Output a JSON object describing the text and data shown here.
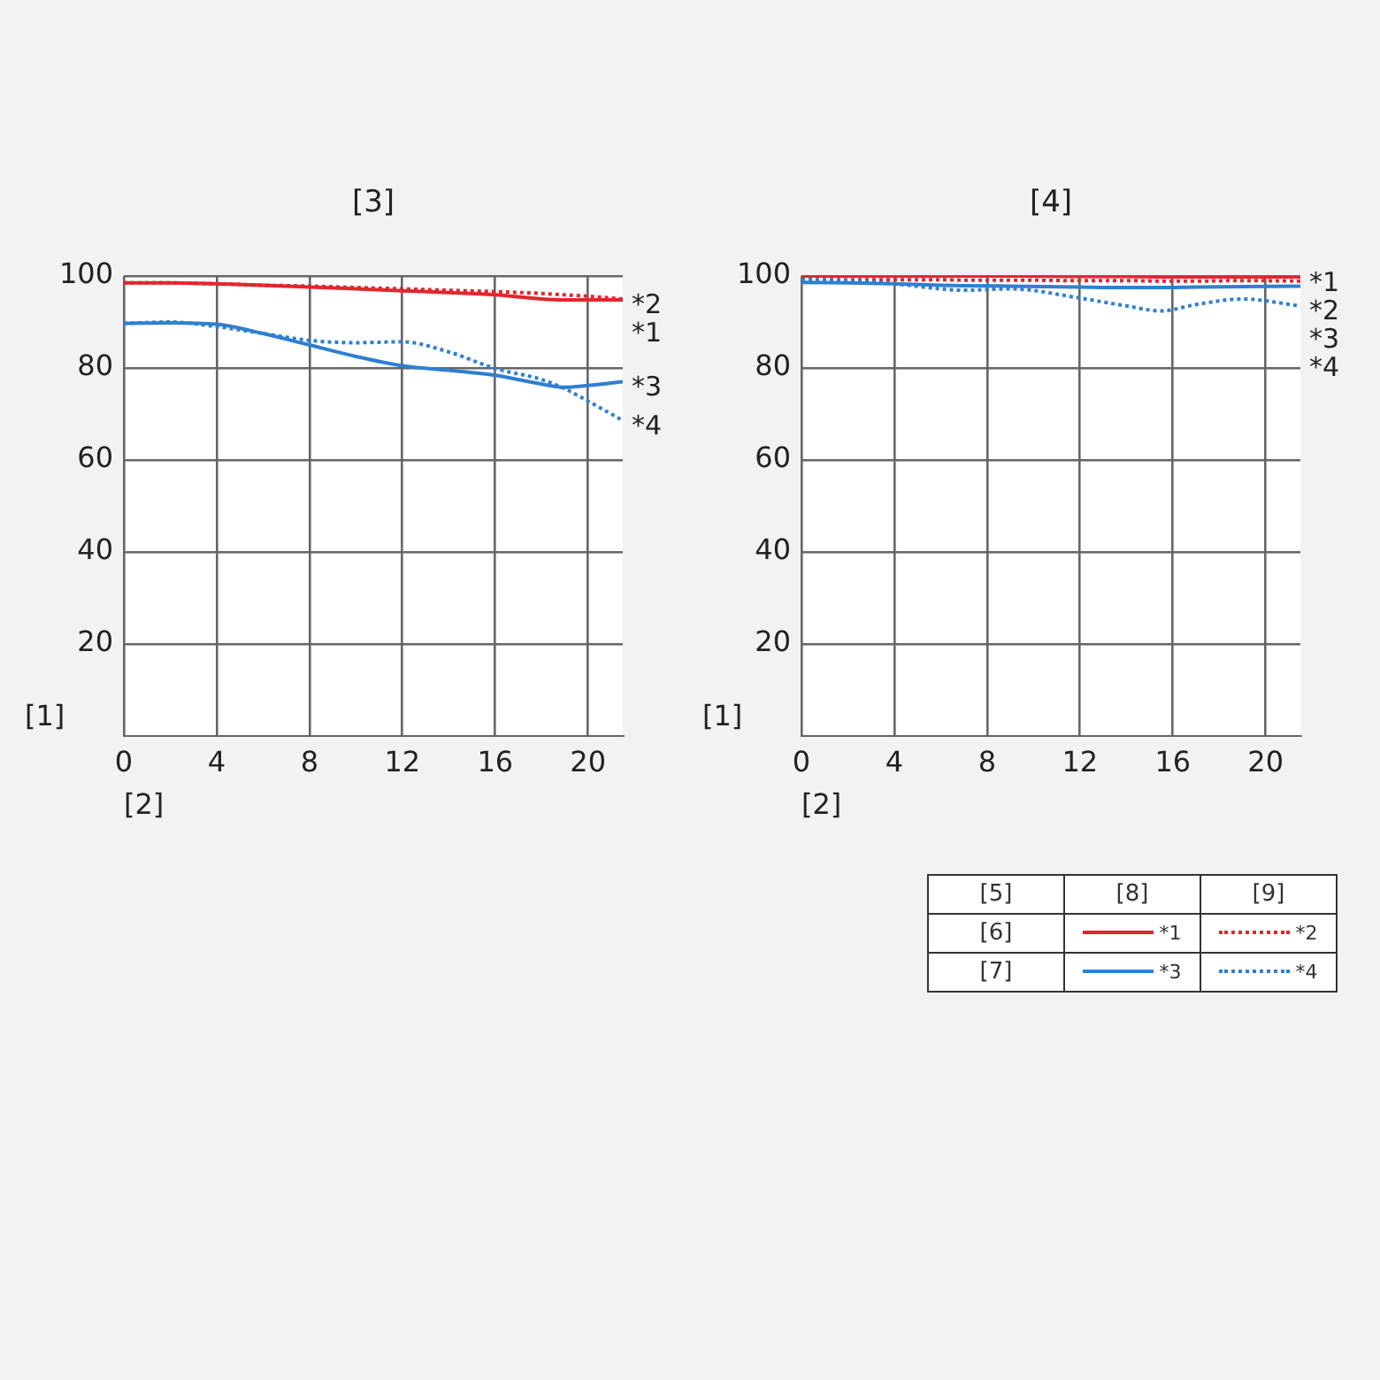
{
  "chart_data": [
    {
      "type": "line",
      "title": "[3]",
      "xlabel": "[2]",
      "ylabel": "[1]",
      "x": [
        0,
        2,
        4,
        6,
        8,
        10,
        12,
        14,
        16,
        18,
        19,
        20,
        21.5
      ],
      "xlim": [
        0,
        21.5
      ],
      "xticks": [
        0,
        4,
        8,
        12,
        16,
        20
      ],
      "ylim": [
        0,
        100
      ],
      "yticks": [
        20,
        40,
        60,
        80,
        100
      ],
      "grid": true,
      "legend": false,
      "series": [
        {
          "name": "*1",
          "color": "#e3262d",
          "line_style": "solid",
          "values": [
            98.5,
            98.5,
            98.3,
            98,
            97.6,
            97.2,
            96.8,
            96.4,
            95.9,
            95,
            94.8,
            94.8,
            94.8
          ]
        },
        {
          "name": "*2",
          "color": "#e3262d",
          "line_style": "dotted",
          "values": [
            98.5,
            98.5,
            98.3,
            98,
            97.8,
            97.5,
            97.2,
            96.9,
            96.6,
            96.2,
            95.9,
            95.6,
            95
          ]
        },
        {
          "name": "*3",
          "color": "#2f7fd1",
          "line_style": "solid",
          "values": [
            89.7,
            89.8,
            89.5,
            87.5,
            85,
            82.5,
            80.5,
            79.5,
            78.4,
            76.5,
            75.8,
            76.2,
            77
          ]
        },
        {
          "name": "*4",
          "color": "#2f7fd1",
          "line_style": "dotted",
          "values": [
            89.7,
            90,
            89,
            87.5,
            86,
            85.5,
            85.7,
            83.5,
            79.9,
            77.5,
            75.5,
            72.8,
            68.6
          ]
        }
      ]
    },
    {
      "type": "line",
      "title": "[4]",
      "xlabel": "[2]",
      "ylabel": "[1]",
      "x": [
        0,
        2,
        4,
        6,
        7,
        9,
        12,
        14,
        15.5,
        17,
        19,
        21.5
      ],
      "xlim": [
        0,
        21.5
      ],
      "xticks": [
        0,
        4,
        8,
        12,
        16,
        20
      ],
      "ylim": [
        0,
        100
      ],
      "yticks": [
        20,
        40,
        60,
        80,
        100
      ],
      "grid": true,
      "legend": "bottom right",
      "annotations": [
        "[5]",
        "[6]",
        "[7]",
        "[8]",
        "[9]"
      ],
      "series": [
        {
          "name": "*1",
          "color": "#e3262d",
          "line_style": "solid",
          "values": [
            100,
            100,
            100,
            100,
            100,
            100,
            99.9,
            99.9,
            99.8,
            99.8,
            99.8,
            99.8
          ]
        },
        {
          "name": "*2",
          "color": "#e3262d",
          "line_style": "dotted",
          "values": [
            99.2,
            99.2,
            99.2,
            99.2,
            99.1,
            99.1,
            99,
            99,
            98.9,
            98.9,
            99,
            98.9
          ]
        },
        {
          "name": "*3",
          "color": "#2f7fd1",
          "line_style": "solid",
          "values": [
            98.6,
            98.5,
            98.3,
            98,
            97.9,
            97.8,
            97.6,
            97.5,
            97.5,
            97.6,
            97.7,
            97.8
          ]
        },
        {
          "name": "*4",
          "color": "#2f7fd1",
          "line_style": "dotted",
          "values": [
            99.2,
            99,
            98.3,
            97.2,
            96.9,
            97.2,
            95.2,
            93.5,
            92.4,
            93.8,
            95,
            93.5
          ]
        }
      ]
    }
  ]
}
